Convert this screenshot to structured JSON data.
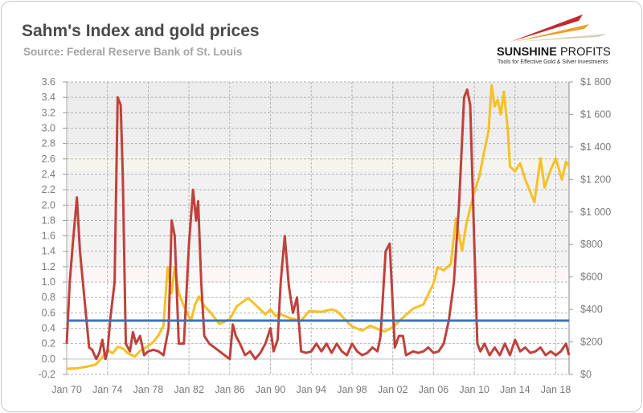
{
  "header": {
    "title": "Sahm's Index and gold prices",
    "subtitle": "Source: Federal Reserve Bank of St. Louis"
  },
  "logo": {
    "name_bold": "SUNSHINE",
    "name_light": "PROFITS",
    "tagline": "Tools for Effective Gold & Silver Investments"
  },
  "colors": {
    "sahm": "#c0413b",
    "gold": "#f6c026",
    "threshold": "#3d74b8",
    "grid": "#b5b5b5"
  },
  "chart_data": {
    "type": "line",
    "title": "Sahm's Index and gold prices",
    "x_range": [
      1970,
      2019.3
    ],
    "y_left": {
      "range": [
        -0.2,
        3.6
      ],
      "ticks": [
        "3.6",
        "3.4",
        "3.2",
        "3.0",
        "2.8",
        "2.6",
        "2.4",
        "2.2",
        "2.0",
        "1.8",
        "1.6",
        "1.4",
        "1.2",
        "1.0",
        "0.8",
        "0.6",
        "0.4",
        "0.2",
        "0.0",
        "-0.2"
      ],
      "tick_values": [
        3.6,
        3.4,
        3.2,
        3.0,
        2.8,
        2.6,
        2.4,
        2.2,
        2.0,
        1.8,
        1.6,
        1.4,
        1.2,
        1.0,
        0.8,
        0.6,
        0.4,
        0.2,
        0.0,
        -0.2
      ]
    },
    "y_right": {
      "range": [
        0,
        1800
      ],
      "ticks": [
        "$1 800",
        "$1 600",
        "$1 400",
        "$1 200",
        "$1 000",
        "$800",
        "$600",
        "$400",
        "$200",
        "$0"
      ],
      "tick_values": [
        1800,
        1600,
        1400,
        1200,
        1000,
        800,
        600,
        400,
        200,
        0
      ]
    },
    "x_ticks": [
      "Jan 70",
      "Jan 74",
      "Jan 78",
      "Jan 82",
      "Jan 86",
      "Jan 90",
      "Jan 94",
      "Jan 98",
      "Jan 02",
      "Jan 06",
      "Jan 10",
      "Jan 14",
      "Jan 18"
    ],
    "x_tick_values": [
      1970,
      1974,
      1978,
      1982,
      1986,
      1990,
      1994,
      1998,
      2002,
      2006,
      2010,
      2014,
      2018
    ],
    "grid": true,
    "threshold": 0.5,
    "series": [
      {
        "name": "Sahm's Index",
        "axis": "left",
        "points": [
          [
            1970.0,
            0.2
          ],
          [
            1970.3,
            1.0
          ],
          [
            1970.6,
            1.5
          ],
          [
            1971.0,
            2.1
          ],
          [
            1971.3,
            1.4
          ],
          [
            1971.8,
            0.7
          ],
          [
            1972.2,
            0.15
          ],
          [
            1972.5,
            0.12
          ],
          [
            1972.9,
            0.0
          ],
          [
            1973.2,
            0.08
          ],
          [
            1973.5,
            0.25
          ],
          [
            1973.8,
            0.0
          ],
          [
            1974.0,
            0.1
          ],
          [
            1974.3,
            0.55
          ],
          [
            1974.7,
            1.0
          ],
          [
            1975.0,
            3.4
          ],
          [
            1975.3,
            3.3
          ],
          [
            1975.5,
            2.4
          ],
          [
            1975.8,
            0.2
          ],
          [
            1976.2,
            0.1
          ],
          [
            1976.5,
            0.35
          ],
          [
            1976.8,
            0.2
          ],
          [
            1977.2,
            0.3
          ],
          [
            1977.6,
            0.05
          ],
          [
            1978.0,
            0.1
          ],
          [
            1978.5,
            0.12
          ],
          [
            1979.0,
            0.1
          ],
          [
            1979.5,
            0.05
          ],
          [
            1980.0,
            0.4
          ],
          [
            1980.3,
            1.8
          ],
          [
            1980.6,
            1.6
          ],
          [
            1981.0,
            0.2
          ],
          [
            1981.5,
            0.2
          ],
          [
            1982.0,
            1.5
          ],
          [
            1982.4,
            2.2
          ],
          [
            1982.7,
            1.8
          ],
          [
            1982.9,
            2.05
          ],
          [
            1983.2,
            1.0
          ],
          [
            1983.5,
            0.3
          ],
          [
            1984.0,
            0.2
          ],
          [
            1984.5,
            0.15
          ],
          [
            1985.0,
            0.1
          ],
          [
            1985.5,
            0.05
          ],
          [
            1986.0,
            0.0
          ],
          [
            1986.3,
            0.45
          ],
          [
            1986.6,
            0.3
          ],
          [
            1987.0,
            0.2
          ],
          [
            1987.5,
            0.05
          ],
          [
            1988.0,
            0.1
          ],
          [
            1988.5,
            0.0
          ],
          [
            1989.0,
            0.08
          ],
          [
            1989.5,
            0.2
          ],
          [
            1990.0,
            0.4
          ],
          [
            1990.3,
            0.1
          ],
          [
            1990.7,
            0.25
          ],
          [
            1991.0,
            1.0
          ],
          [
            1991.4,
            1.6
          ],
          [
            1991.8,
            0.95
          ],
          [
            1992.2,
            0.6
          ],
          [
            1992.6,
            0.8
          ],
          [
            1993.0,
            0.1
          ],
          [
            1993.5,
            0.08
          ],
          [
            1994.0,
            0.1
          ],
          [
            1994.5,
            0.2
          ],
          [
            1995.0,
            0.1
          ],
          [
            1995.5,
            0.2
          ],
          [
            1996.0,
            0.08
          ],
          [
            1996.5,
            0.2
          ],
          [
            1997.0,
            0.1
          ],
          [
            1997.5,
            0.05
          ],
          [
            1998.0,
            0.2
          ],
          [
            1998.5,
            0.1
          ],
          [
            1999.0,
            0.05
          ],
          [
            1999.5,
            0.08
          ],
          [
            2000.0,
            0.15
          ],
          [
            2000.5,
            0.1
          ],
          [
            2000.8,
            0.3
          ],
          [
            2001.3,
            1.4
          ],
          [
            2001.7,
            1.5
          ],
          [
            2002.2,
            0.15
          ],
          [
            2002.6,
            0.3
          ],
          [
            2003.0,
            0.3
          ],
          [
            2003.3,
            0.05
          ],
          [
            2004.0,
            0.1
          ],
          [
            2004.5,
            0.08
          ],
          [
            2005.0,
            0.1
          ],
          [
            2005.5,
            0.15
          ],
          [
            2006.0,
            0.08
          ],
          [
            2006.5,
            0.1
          ],
          [
            2007.0,
            0.2
          ],
          [
            2007.5,
            0.5
          ],
          [
            2008.0,
            1.0
          ],
          [
            2008.5,
            2.0
          ],
          [
            2009.0,
            3.4
          ],
          [
            2009.3,
            3.5
          ],
          [
            2009.6,
            3.3
          ],
          [
            2010.0,
            1.5
          ],
          [
            2010.3,
            0.2
          ],
          [
            2010.6,
            0.1
          ],
          [
            2011.0,
            0.2
          ],
          [
            2011.5,
            0.05
          ],
          [
            2012.0,
            0.15
          ],
          [
            2012.5,
            0.05
          ],
          [
            2013.0,
            0.2
          ],
          [
            2013.5,
            0.05
          ],
          [
            2014.0,
            0.25
          ],
          [
            2014.5,
            0.1
          ],
          [
            2015.0,
            0.15
          ],
          [
            2015.5,
            0.08
          ],
          [
            2016.0,
            0.1
          ],
          [
            2016.5,
            0.15
          ],
          [
            2017.0,
            0.05
          ],
          [
            2017.5,
            0.1
          ],
          [
            2018.0,
            0.05
          ],
          [
            2018.5,
            0.1
          ],
          [
            2019.0,
            0.2
          ],
          [
            2019.3,
            0.05
          ]
        ]
      },
      {
        "name": "Gold price",
        "axis": "right",
        "points": [
          [
            1970.0,
            35
          ],
          [
            1971.0,
            38
          ],
          [
            1972.0,
            48
          ],
          [
            1972.8,
            60
          ],
          [
            1973.3,
            90
          ],
          [
            1974.0,
            150
          ],
          [
            1974.5,
            130
          ],
          [
            1975.0,
            170
          ],
          [
            1975.5,
            160
          ],
          [
            1976.0,
            130
          ],
          [
            1976.7,
            110
          ],
          [
            1977.2,
            145
          ],
          [
            1978.0,
            175
          ],
          [
            1978.5,
            200
          ],
          [
            1979.0,
            240
          ],
          [
            1979.5,
            300
          ],
          [
            1979.9,
            660
          ],
          [
            1980.3,
            500
          ],
          [
            1980.6,
            660
          ],
          [
            1981.0,
            500
          ],
          [
            1981.5,
            420
          ],
          [
            1982.2,
            330
          ],
          [
            1982.6,
            430
          ],
          [
            1983.0,
            480
          ],
          [
            1983.5,
            420
          ],
          [
            1984.0,
            390
          ],
          [
            1985.0,
            310
          ],
          [
            1986.0,
            340
          ],
          [
            1986.7,
            420
          ],
          [
            1987.8,
            470
          ],
          [
            1988.5,
            430
          ],
          [
            1989.5,
            370
          ],
          [
            1990.0,
            400
          ],
          [
            1990.5,
            360
          ],
          [
            1991.0,
            370
          ],
          [
            1992.0,
            345
          ],
          [
            1993.0,
            330
          ],
          [
            1993.8,
            390
          ],
          [
            1995.0,
            385
          ],
          [
            1996.0,
            400
          ],
          [
            1996.5,
            390
          ],
          [
            1997.0,
            360
          ],
          [
            1997.6,
            320
          ],
          [
            1998.0,
            295
          ],
          [
            1999.0,
            270
          ],
          [
            1999.8,
            300
          ],
          [
            2000.5,
            280
          ],
          [
            2001.2,
            265
          ],
          [
            2002.0,
            290
          ],
          [
            2003.0,
            350
          ],
          [
            2004.0,
            405
          ],
          [
            2005.0,
            430
          ],
          [
            2006.0,
            560
          ],
          [
            2006.4,
            660
          ],
          [
            2007.0,
            640
          ],
          [
            2007.7,
            680
          ],
          [
            2008.2,
            960
          ],
          [
            2008.8,
            760
          ],
          [
            2009.2,
            920
          ],
          [
            2009.9,
            1100
          ],
          [
            2010.5,
            1220
          ],
          [
            2011.0,
            1380
          ],
          [
            2011.4,
            1500
          ],
          [
            2011.7,
            1780
          ],
          [
            2012.0,
            1650
          ],
          [
            2012.3,
            1690
          ],
          [
            2012.6,
            1600
          ],
          [
            2012.9,
            1740
          ],
          [
            2013.3,
            1500
          ],
          [
            2013.5,
            1280
          ],
          [
            2014.0,
            1250
          ],
          [
            2014.5,
            1300
          ],
          [
            2015.0,
            1200
          ],
          [
            2015.9,
            1060
          ],
          [
            2016.5,
            1330
          ],
          [
            2016.9,
            1150
          ],
          [
            2017.5,
            1260
          ],
          [
            2018.0,
            1330
          ],
          [
            2018.6,
            1200
          ],
          [
            2019.0,
            1310
          ],
          [
            2019.3,
            1280
          ]
        ]
      }
    ]
  }
}
